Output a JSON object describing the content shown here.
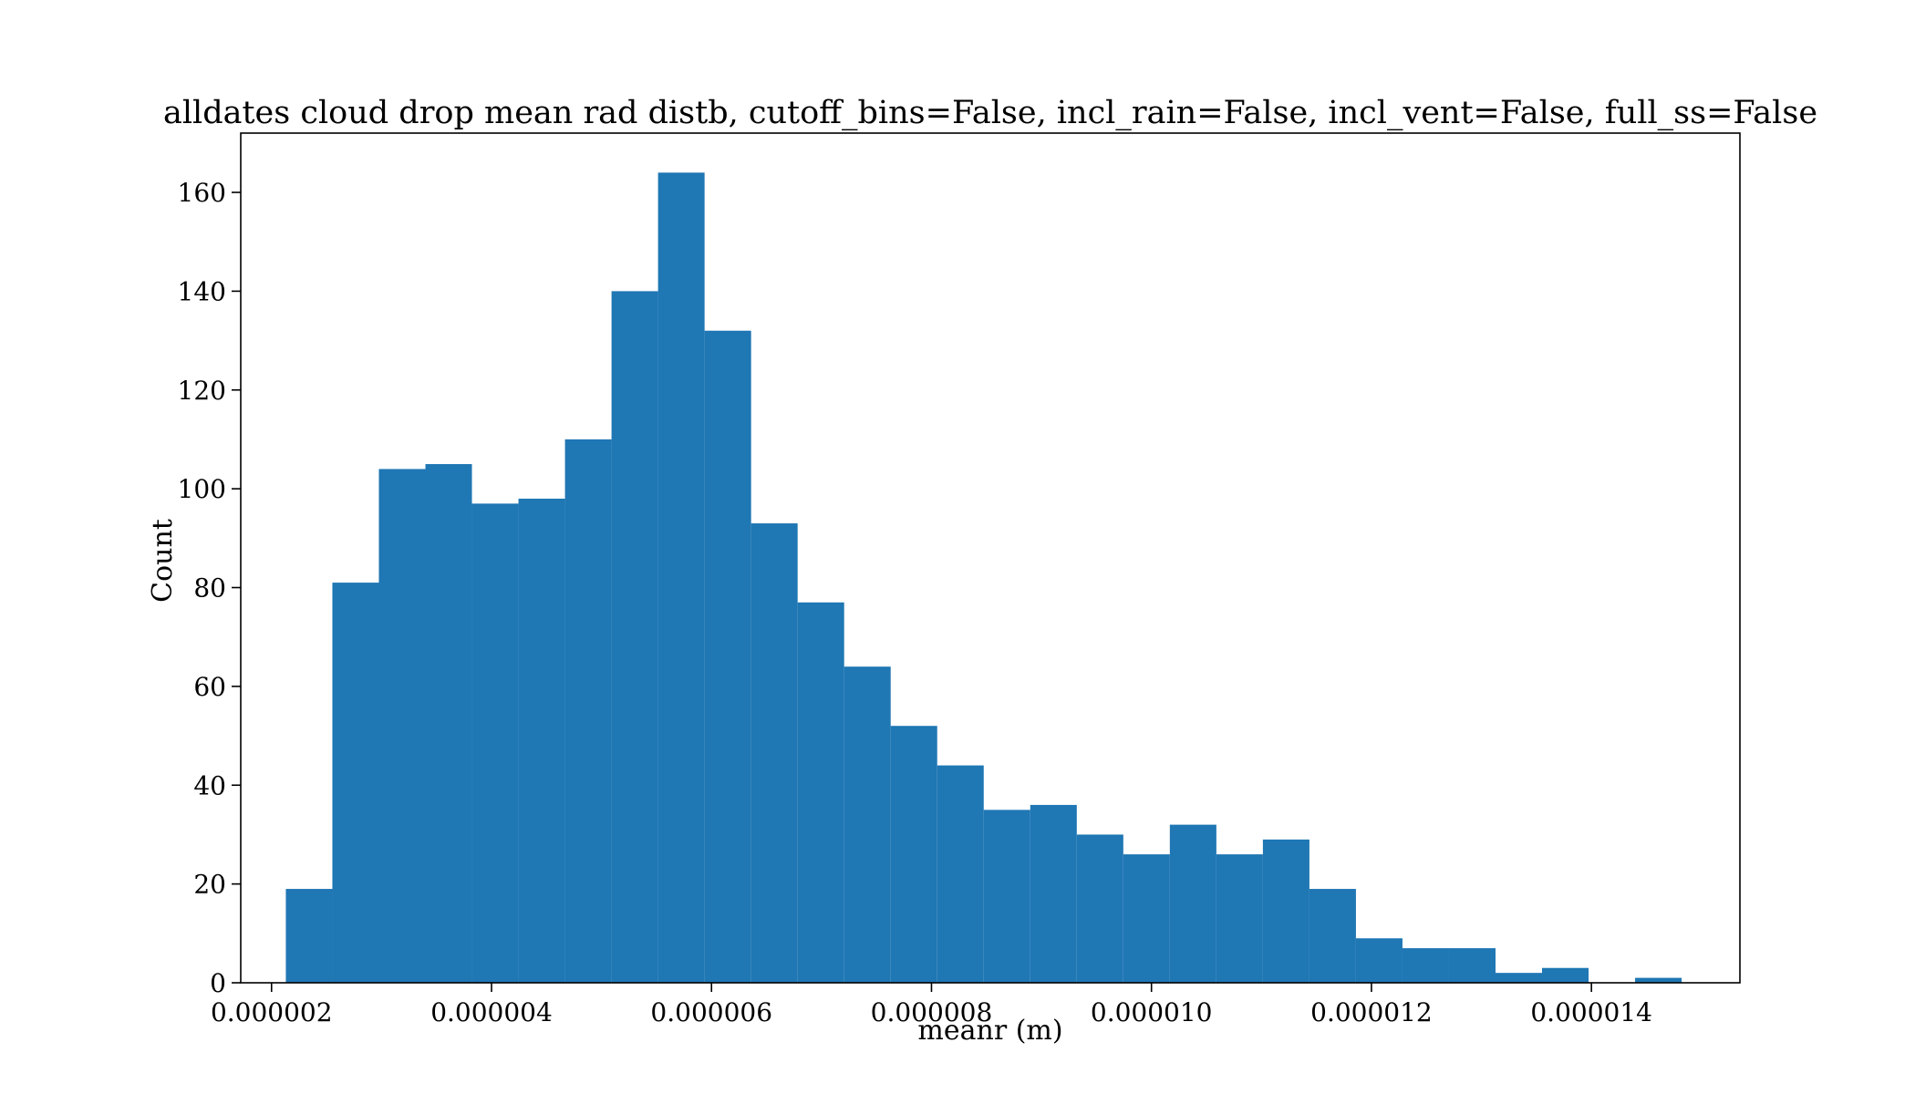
{
  "chart_data": {
    "type": "bar",
    "title": "alldates cloud drop mean rad distb, cutoff_bins=False, incl_rain=False, incl_vent=False, full_ss=False",
    "xlabel": "meanr (m)",
    "ylabel": "Count",
    "xlim": [
      1.72e-06,
      1.535e-05
    ],
    "ylim": [
      0,
      172
    ],
    "bin_edges": [
      2.13e-06,
      2.553e-06,
      2.976e-06,
      3.399e-06,
      3.822e-06,
      4.245e-06,
      4.668e-06,
      5.091e-06,
      5.514e-06,
      5.937e-06,
      6.36e-06,
      6.783e-06,
      7.206e-06,
      7.629e-06,
      8.052e-06,
      8.475e-06,
      8.898e-06,
      9.321e-06,
      9.744e-06,
      1.0167e-05,
      1.059e-05,
      1.1013e-05,
      1.1436e-05,
      1.1859e-05,
      1.2282e-05,
      1.2705e-05,
      1.3128e-05,
      1.3551e-05,
      1.3974e-05,
      1.4397e-05,
      1.482e-05
    ],
    "values": [
      19,
      81,
      104,
      105,
      97,
      98,
      110,
      140,
      164,
      132,
      93,
      77,
      64,
      52,
      44,
      35,
      36,
      30,
      26,
      32,
      26,
      29,
      19,
      9,
      7,
      7,
      2,
      3,
      0,
      1
    ],
    "bar_color": "#1f77b4",
    "x_ticks": [
      2e-06,
      4e-06,
      6e-06,
      8e-06,
      1e-05,
      1.2e-05,
      1.4e-05
    ],
    "x_tick_labels": [
      "0.000002",
      "0.000004",
      "0.000006",
      "0.000008",
      "0.000010",
      "0.000012",
      "0.000014"
    ],
    "y_ticks": [
      0,
      20,
      40,
      60,
      80,
      100,
      120,
      140,
      160
    ],
    "y_tick_labels": [
      "0",
      "20",
      "40",
      "60",
      "80",
      "100",
      "120",
      "140",
      "160"
    ],
    "grid": false,
    "legend": "none"
  }
}
